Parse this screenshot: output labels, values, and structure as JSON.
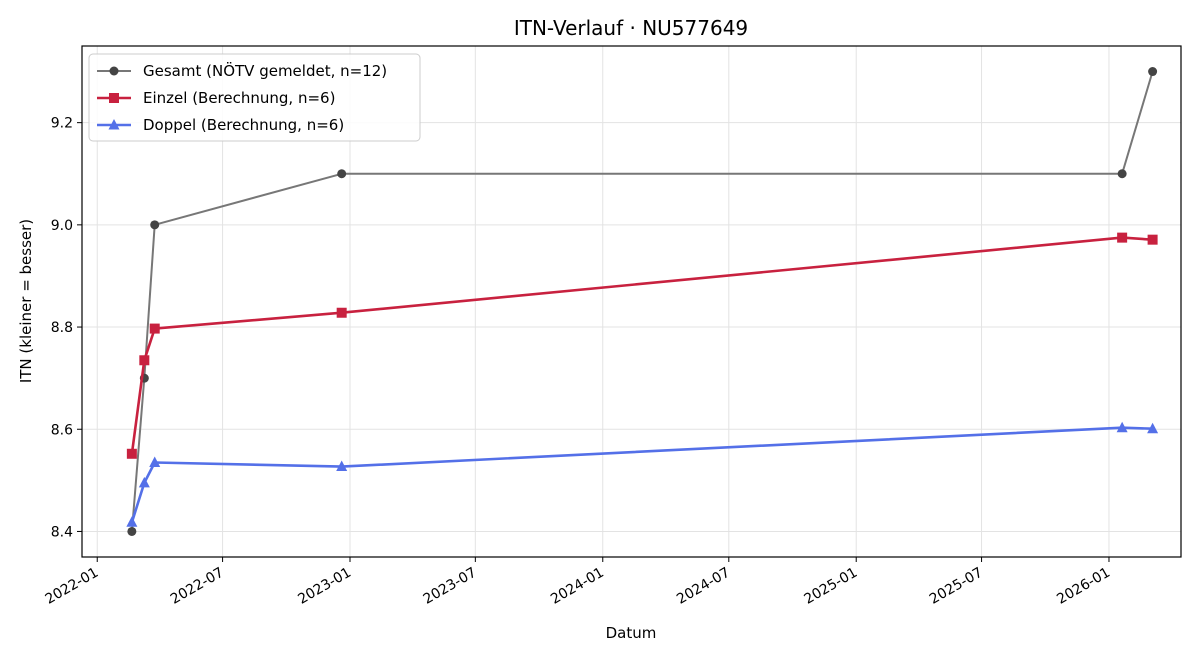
{
  "chart_data": {
    "type": "line",
    "title": "ITN-Verlauf · NU577649",
    "xlabel": "Datum",
    "ylabel": "ITN  (kleiner = besser)",
    "x_ticks": [
      "2022-01",
      "2022-07",
      "2023-01",
      "2023-07",
      "2024-01",
      "2024-07",
      "2025-01",
      "2025-07",
      "2026-01"
    ],
    "y_ticks": [
      "8.4",
      "8.6",
      "8.8",
      "9.0",
      "9.2"
    ],
    "xlim": [
      "2021-12-10",
      "2026-04-15"
    ],
    "ylim": [
      8.35,
      9.35
    ],
    "grid": true,
    "legend_position": "top-left",
    "series": [
      {
        "name": "Gesamt (NÖTV gemeldet, n=12)",
        "color": "#777777",
        "marker_color": "#444444",
        "marker": "circle",
        "points": [
          {
            "x": "2022-02-20",
            "y": 8.4
          },
          {
            "x": "2022-03-10",
            "y": 8.7
          },
          {
            "x": "2022-03-25",
            "y": 9.0
          },
          {
            "x": "2022-12-20",
            "y": 9.1
          },
          {
            "x": "2026-01-20",
            "y": 9.1
          },
          {
            "x": "2026-03-05",
            "y": 9.3
          }
        ]
      },
      {
        "name": "Einzel (Berechnung, n=6)",
        "color": "#c8213f",
        "marker_color": "#c8213f",
        "marker": "square",
        "points": [
          {
            "x": "2022-02-20",
            "y": 8.552
          },
          {
            "x": "2022-03-10",
            "y": 8.735
          },
          {
            "x": "2022-03-25",
            "y": 8.797
          },
          {
            "x": "2022-12-20",
            "y": 8.828
          },
          {
            "x": "2026-01-20",
            "y": 8.975
          },
          {
            "x": "2026-03-05",
            "y": 8.971
          }
        ]
      },
      {
        "name": "Doppel (Berechnung, n=6)",
        "color": "#5470e8",
        "marker_color": "#5470e8",
        "marker": "triangle",
        "points": [
          {
            "x": "2022-02-20",
            "y": 8.418
          },
          {
            "x": "2022-03-10",
            "y": 8.495
          },
          {
            "x": "2022-03-25",
            "y": 8.535
          },
          {
            "x": "2022-12-20",
            "y": 8.527
          },
          {
            "x": "2026-01-20",
            "y": 8.603
          },
          {
            "x": "2026-03-05",
            "y": 8.601
          }
        ]
      }
    ]
  }
}
